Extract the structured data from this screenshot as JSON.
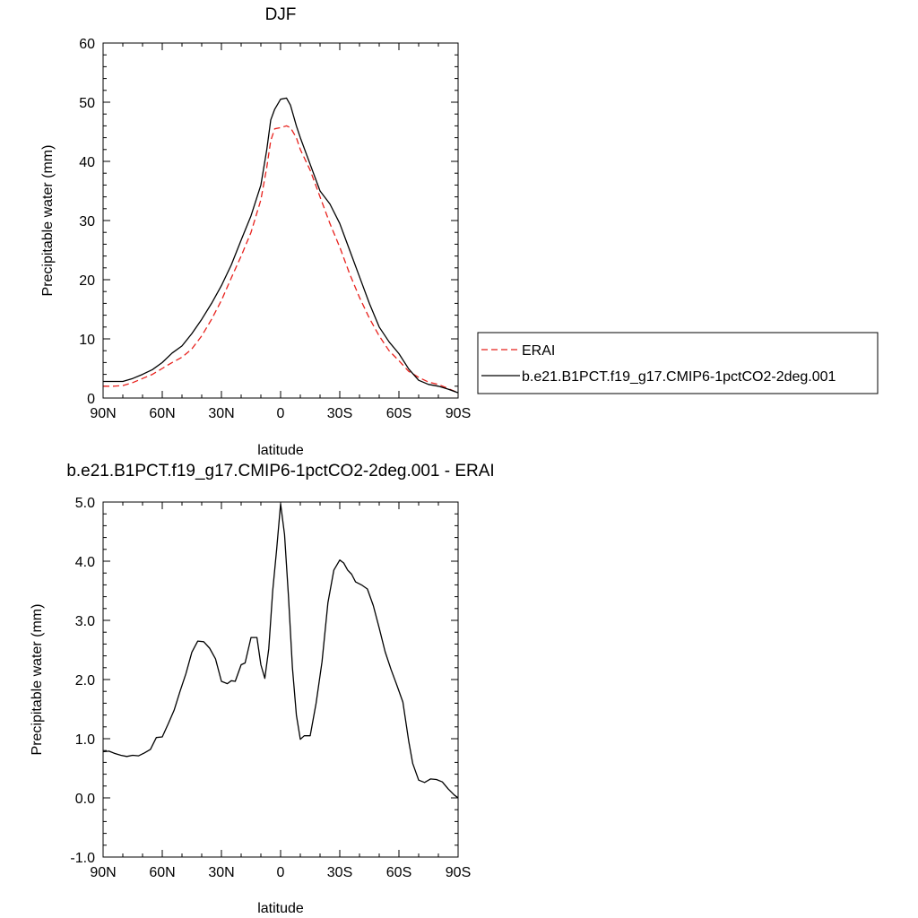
{
  "chart_data": [
    {
      "type": "line",
      "title": "DJF",
      "xlabel": "latitude",
      "ylabel": "Precipitable water (mm)",
      "xlim": [
        90,
        -90
      ],
      "ylim": [
        0,
        60
      ],
      "xticks": [
        90,
        60,
        30,
        0,
        -30,
        -60,
        -90
      ],
      "xtick_labels": [
        "90N",
        "60N",
        "30N",
        "0",
        "30S",
        "60S",
        "90S"
      ],
      "yticks": [
        0,
        10,
        20,
        30,
        40,
        50,
        60
      ],
      "ytick_labels": [
        "0",
        "10",
        "20",
        "30",
        "40",
        "50",
        "60"
      ],
      "legend_position": "right",
      "series": [
        {
          "name": "ERAI",
          "color": "#e8211c",
          "style": "dashed",
          "x": [
            90,
            85,
            80,
            75,
            70,
            65,
            60,
            55,
            50,
            45,
            40,
            35,
            30,
            25,
            20,
            15,
            10,
            7,
            5,
            3,
            0,
            -3,
            -5,
            -8,
            -10,
            -15,
            -20,
            -25,
            -30,
            -35,
            -40,
            -45,
            -50,
            -55,
            -60,
            -65,
            -70,
            -75,
            -80,
            -85,
            -90
          ],
          "y": [
            2.0,
            2.0,
            2.1,
            2.6,
            3.3,
            4.0,
            5.0,
            6.0,
            6.9,
            8.3,
            10.5,
            13.3,
            16.5,
            20.3,
            24.0,
            28.0,
            33.5,
            39.0,
            43.5,
            45.5,
            45.7,
            46.0,
            45.7,
            44.0,
            42.0,
            38.5,
            34.0,
            29.5,
            25.5,
            21.0,
            17.0,
            13.5,
            10.5,
            8.0,
            6.3,
            4.5,
            3.5,
            2.7,
            2.3,
            1.6,
            0.9
          ]
        },
        {
          "name": "b.e21.B1PCT.f19_g17.CMIP6-1pctCO2-2deg.001",
          "color": "#000000",
          "style": "solid",
          "x": [
            90,
            85,
            80,
            75,
            70,
            65,
            60,
            55,
            50,
            45,
            40,
            35,
            30,
            25,
            20,
            15,
            10,
            7,
            5,
            3,
            0,
            -3,
            -5,
            -8,
            -10,
            -15,
            -20,
            -25,
            -30,
            -35,
            -40,
            -45,
            -50,
            -55,
            -60,
            -65,
            -70,
            -75,
            -80,
            -85,
            -90
          ],
          "y": [
            2.8,
            2.8,
            2.8,
            3.3,
            4.0,
            4.8,
            6.0,
            7.6,
            8.8,
            10.9,
            13.3,
            16.0,
            19.0,
            22.5,
            26.7,
            30.8,
            36.0,
            42.0,
            47.0,
            48.8,
            50.5,
            50.7,
            49.5,
            46.0,
            44.0,
            39.5,
            35.0,
            32.8,
            29.5,
            25.0,
            20.5,
            16.0,
            12.0,
            9.5,
            7.5,
            4.9,
            3.0,
            2.3,
            2.0,
            1.5,
            0.9
          ]
        }
      ]
    },
    {
      "type": "line",
      "title": "b.e21.B1PCT.f19_g17.CMIP6-1pctCO2-2deg.001 - ERAI",
      "xlabel": "latitude",
      "ylabel": "Precipitable water (mm)",
      "xlim": [
        90,
        -90
      ],
      "ylim": [
        -1.0,
        5.0
      ],
      "xticks": [
        90,
        60,
        30,
        0,
        -30,
        -60,
        -90
      ],
      "xtick_labels": [
        "90N",
        "60N",
        "30N",
        "0",
        "30S",
        "60S",
        "90S"
      ],
      "yticks": [
        -1.0,
        0.0,
        1.0,
        2.0,
        3.0,
        4.0,
        5.0
      ],
      "ytick_labels": [
        "-1.0",
        "0.0",
        "1.0",
        "2.0",
        "3.0",
        "4.0",
        "5.0"
      ],
      "series": [
        {
          "color": "#000000",
          "style": "solid",
          "x": [
            90,
            87,
            84,
            81,
            78,
            75,
            72,
            69,
            66,
            63,
            60,
            57,
            54,
            51,
            48,
            45,
            42,
            39,
            36,
            33,
            30,
            27,
            25,
            23,
            20,
            18,
            15,
            12,
            10,
            8,
            6,
            4,
            2,
            0,
            -2,
            -4,
            -6,
            -8,
            -10,
            -12,
            -15,
            -18,
            -21,
            -24,
            -27,
            -30,
            -32,
            -34,
            -36,
            -38,
            -41,
            -44,
            -47,
            -50,
            -53,
            -56,
            -59,
            -62,
            -65,
            -67,
            -70,
            -73,
            -76,
            -79,
            -82,
            -85,
            -88,
            -90
          ],
          "y": [
            0.78,
            0.79,
            0.75,
            0.72,
            0.7,
            0.72,
            0.71,
            0.76,
            0.82,
            1.02,
            1.03,
            1.25,
            1.48,
            1.8,
            2.1,
            2.46,
            2.65,
            2.64,
            2.53,
            2.35,
            1.97,
            1.93,
            1.98,
            1.97,
            2.25,
            2.28,
            2.71,
            2.71,
            2.25,
            2.02,
            2.52,
            3.5,
            4.2,
            4.97,
            4.45,
            3.4,
            2.2,
            1.4,
            0.99,
            1.05,
            1.05,
            1.6,
            2.3,
            3.3,
            3.85,
            4.02,
            3.97,
            3.85,
            3.78,
            3.65,
            3.6,
            3.53,
            3.25,
            2.87,
            2.47,
            2.17,
            1.9,
            1.62,
            0.95,
            0.58,
            0.3,
            0.26,
            0.32,
            0.31,
            0.27,
            0.15,
            0.05,
            0.0
          ]
        }
      ]
    }
  ]
}
